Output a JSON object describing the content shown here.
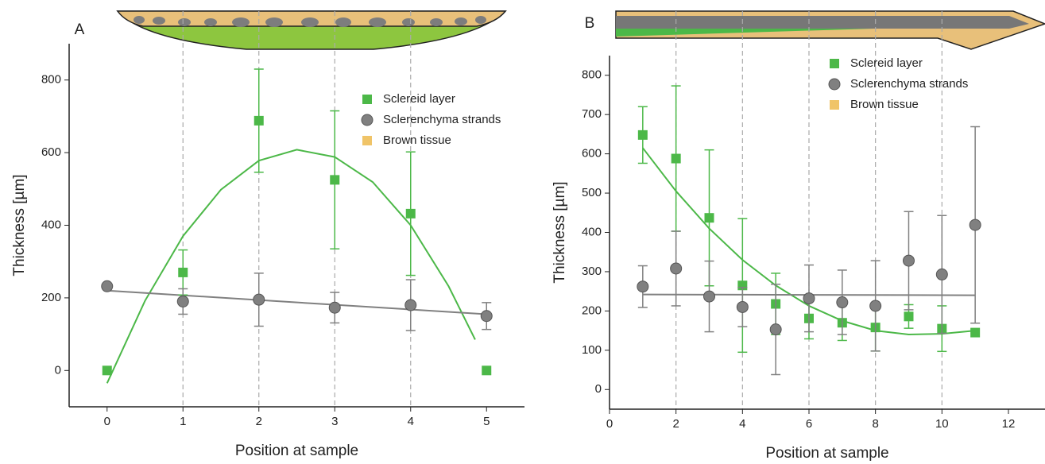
{
  "chart_data": [
    {
      "type": "scatter",
      "panel": "A",
      "x_label": "Position at sample",
      "y_label": "Thickness [µm]",
      "xlim": [
        -0.5,
        5.5
      ],
      "xticks": [
        0,
        1,
        2,
        3,
        4,
        5
      ],
      "ylim": [
        -100,
        900
      ],
      "yticks": [
        0,
        200,
        400,
        600,
        800
      ],
      "guides": [
        1,
        2,
        3,
        4
      ],
      "legend": "upper right",
      "series": [
        {
          "name": "Sclereid layer",
          "color": "#4cb848",
          "marker": "square",
          "x": [
            0,
            1,
            2,
            3,
            4,
            5
          ],
          "values": [
            0,
            270,
            688,
            525,
            432,
            0
          ],
          "errors": [
            0,
            62,
            142,
            190,
            170,
            0
          ]
        },
        {
          "name": "Sclerenchyma strands",
          "color": "#808080",
          "marker": "circle",
          "x": [
            0,
            1,
            2,
            3,
            4,
            5
          ],
          "values": [
            232,
            190,
            195,
            173,
            180,
            150
          ],
          "errors": [
            0,
            35,
            73,
            42,
            70,
            37
          ]
        },
        {
          "name": "Brown tissue",
          "color": "#f0c468",
          "marker": "square",
          "x": [],
          "values": [],
          "errors": []
        }
      ],
      "fits": [
        {
          "color": "#4cb848",
          "x": [
            0,
            0.5,
            1,
            1.5,
            2,
            2.5,
            3,
            3.5,
            4,
            4.5,
            4.85
          ],
          "values": [
            -35,
            192,
            370,
            498,
            578,
            608,
            588,
            519,
            400,
            232,
            85
          ]
        },
        {
          "color": "#808080",
          "x": [
            0,
            5
          ],
          "values": [
            220,
            155
          ]
        }
      ]
    },
    {
      "type": "scatter",
      "panel": "B",
      "x_label": "Position at sample",
      "y_label": "Thickness [µm]",
      "xlim": [
        0,
        13.1
      ],
      "xticks": [
        0,
        2,
        4,
        6,
        8,
        10,
        12
      ],
      "ylim": [
        -50,
        850
      ],
      "yticks": [
        0,
        100,
        200,
        300,
        400,
        500,
        600,
        700,
        800
      ],
      "guides": [
        2,
        4,
        6,
        8,
        10
      ],
      "legend": "upper right",
      "series": [
        {
          "name": "Sclereid layer",
          "color": "#4cb848",
          "marker": "square",
          "x": [
            1,
            2,
            3,
            4,
            5,
            6,
            7,
            8,
            9,
            10,
            11
          ],
          "values": [
            648,
            588,
            437,
            265,
            218,
            181,
            170,
            158,
            186,
            155,
            145
          ],
          "errors": [
            72,
            185,
            173,
            170,
            78,
            52,
            45,
            60,
            30,
            58,
            0
          ]
        },
        {
          "name": "Sclerenchyma strands",
          "color": "#808080",
          "marker": "circle",
          "x": [
            1,
            2,
            3,
            4,
            5,
            6,
            7,
            8,
            9,
            10,
            11
          ],
          "values": [
            262,
            308,
            237,
            210,
            153,
            232,
            222,
            213,
            328,
            293,
            419
          ],
          "errors": [
            53,
            95,
            90,
            50,
            115,
            85,
            82,
            115,
            125,
            150,
            250
          ]
        },
        {
          "name": "Brown tissue",
          "color": "#f0c468",
          "marker": "square",
          "x": [],
          "values": [],
          "errors": []
        }
      ],
      "fits": [
        {
          "color": "#4cb848",
          "x": [
            1,
            2,
            3,
            4,
            5,
            6,
            7,
            8,
            9,
            10,
            11
          ],
          "values": [
            615,
            505,
            410,
            330,
            265,
            213,
            175,
            150,
            140,
            142,
            150
          ]
        },
        {
          "color": "#808080",
          "x": [
            1,
            11
          ],
          "values": [
            242,
            240
          ]
        }
      ]
    }
  ]
}
